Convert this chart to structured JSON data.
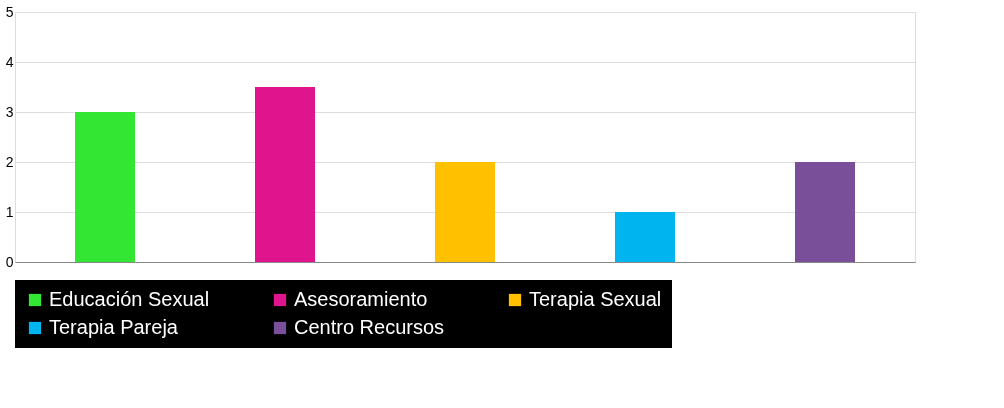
{
  "chart_data": {
    "type": "bar",
    "categories": [
      null,
      null,
      null,
      null,
      null
    ],
    "series": [
      {
        "name": "Educación Sexual",
        "color": "#33e633",
        "values": [
          3,
          null,
          null,
          null,
          null
        ]
      },
      {
        "name": "Asesoramiento",
        "color": "#e0148c",
        "values": [
          null,
          3.5,
          null,
          null,
          null
        ]
      },
      {
        "name": "Terapia Sexual",
        "color": "#ffc000",
        "values": [
          null,
          null,
          2,
          null,
          null
        ]
      },
      {
        "name": "Terapia Pareja",
        "color": "#00b4f0",
        "values": [
          null,
          null,
          null,
          1,
          null
        ]
      },
      {
        "name": "Centro Recursos",
        "color": "#7a4f9a",
        "values": [
          null,
          null,
          null,
          null,
          2
        ]
      }
    ],
    "ylim": [
      0,
      5
    ],
    "yticks": [
      0,
      1,
      2,
      3,
      4,
      5
    ],
    "grid": "y",
    "legend": "bottom",
    "tick_labels": "y"
  }
}
